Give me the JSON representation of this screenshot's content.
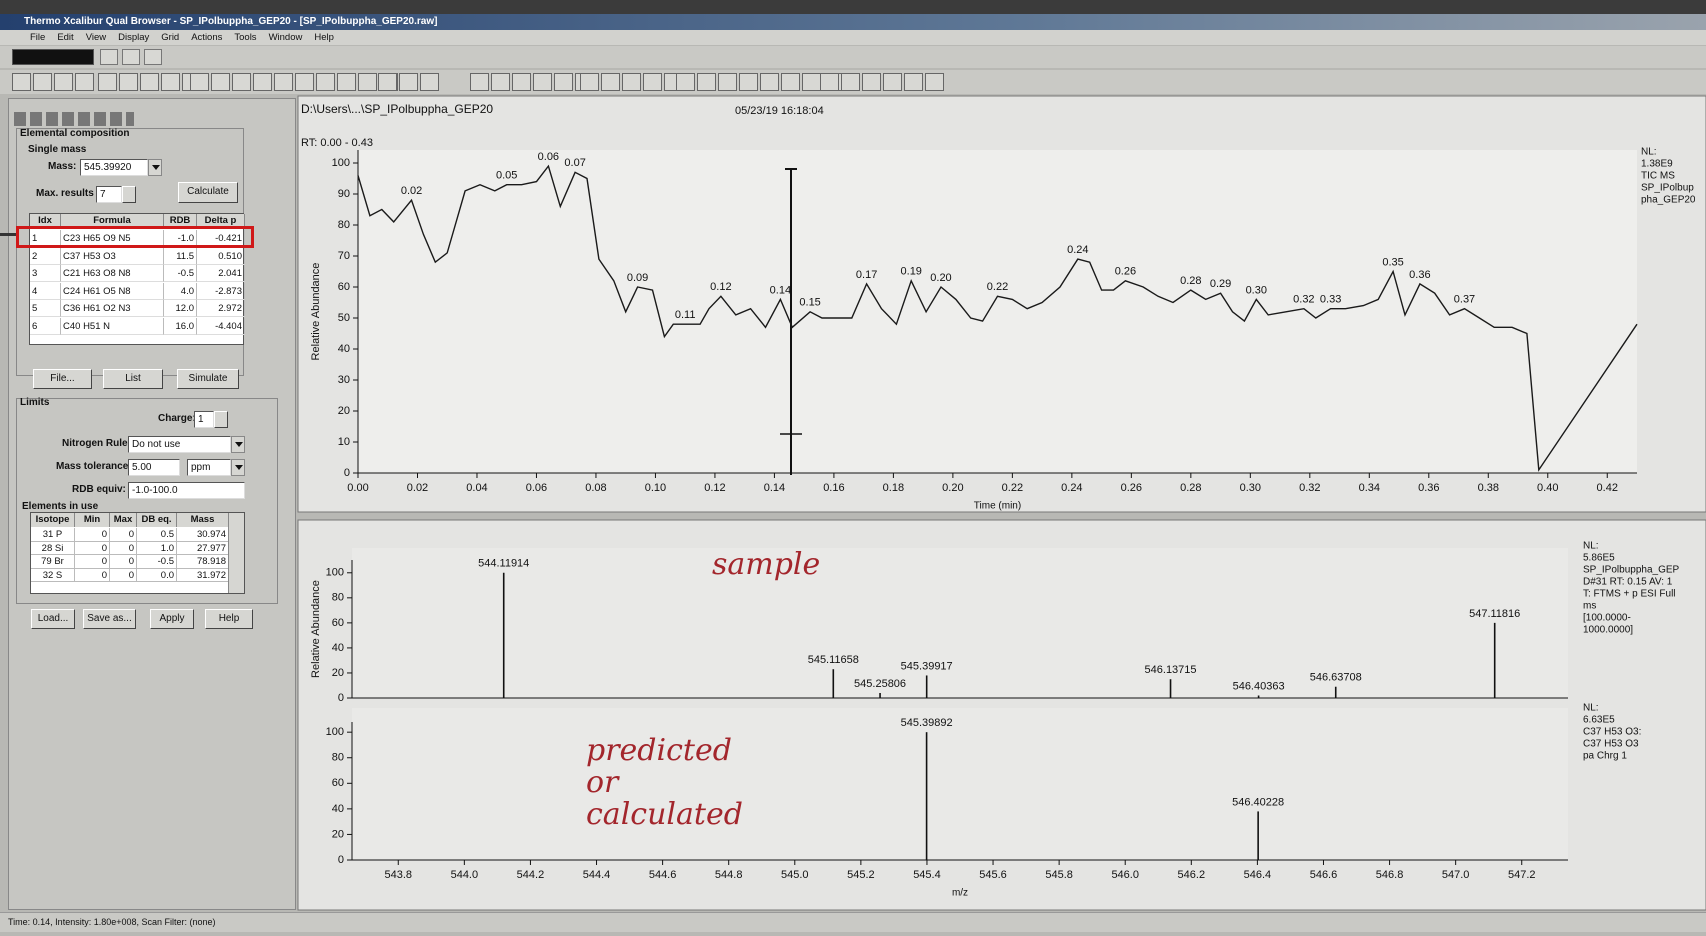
{
  "window": {
    "title": "Thermo Xcalibur Qual Browser - SP_IPolbuppha_GEP20 - [SP_IPolbuppha_GEP20.raw]",
    "menu": [
      "File",
      "Edit",
      "View",
      "Display",
      "Grid",
      "Actions",
      "Tools",
      "Window",
      "Help"
    ]
  },
  "composition": {
    "panel_title": "Elemental composition",
    "section": "Single mass",
    "mass_label": "Mass:",
    "mass": "545.39920",
    "max_results_label": "Max. results",
    "max_results": "7",
    "calculate": "Calculate",
    "columns": [
      "Idx",
      "Formula",
      "RDB",
      "Delta p"
    ],
    "rows": [
      [
        "1",
        "C23 H65 O9 N5",
        "-1.0",
        "-0.421"
      ],
      [
        "2",
        "C37 H53 O3",
        "11.5",
        "0.510"
      ],
      [
        "3",
        "C21 H63 O8 N8",
        "-0.5",
        "2.041"
      ],
      [
        "4",
        "C24 H61 O5 N8",
        "4.0",
        "-2.873"
      ],
      [
        "5",
        "C36 H61 O2 N3",
        "12.0",
        "2.972"
      ],
      [
        "6",
        "C40 H51 N",
        "16.0",
        "-4.404"
      ]
    ],
    "buttons": [
      "File...",
      "List",
      "Simulate"
    ],
    "limits": {
      "title": "Limits",
      "charge_label": "Charge:",
      "charge": "1",
      "nitrogen_label": "Nitrogen Rule:",
      "nitrogen": "Do not use",
      "tolerance_label": "Mass tolerance",
      "tolerance": "5.00",
      "tolerance_unit": "ppm",
      "rdb_label": "RDB equiv:",
      "rdb": "-1.0-100.0"
    },
    "elements": {
      "title": "Elements in use",
      "columns": [
        "Isotope",
        "Min",
        "Max",
        "DB eq.",
        "Mass"
      ],
      "rows": [
        [
          "31 P",
          "0",
          "0",
          "0.5",
          "30.974"
        ],
        [
          "28 Si",
          "0",
          "0",
          "1.0",
          "27.977"
        ],
        [
          "79 Br",
          "0",
          "0",
          "-0.5",
          "78.918"
        ],
        [
          "32 S",
          "0",
          "0",
          "0.0",
          "31.972"
        ]
      ]
    },
    "bottom_buttons": [
      "Load...",
      "Save as...",
      "Apply",
      "Help"
    ]
  },
  "chromatogram": {
    "type": "line",
    "path": "D:\\Users\\...\\SP_IPolbuppha_GEP20",
    "timestamp": "05/23/19 16:18:04",
    "range_label": "RT: 0.00 - 0.43",
    "xlabel": "Time (min)",
    "ylabel": "Relative Abundance",
    "color": "#1a1a1a",
    "x": [
      0.0,
      0.004,
      0.008,
      0.012,
      0.018,
      0.022,
      0.026,
      0.03,
      0.036,
      0.041,
      0.046,
      0.05,
      0.055,
      0.06,
      0.064,
      0.068,
      0.073,
      0.077,
      0.081,
      0.086,
      0.09,
      0.094,
      0.099,
      0.103,
      0.106,
      0.11,
      0.115,
      0.118,
      0.122,
      0.127,
      0.132,
      0.137,
      0.142,
      0.146,
      0.152,
      0.156,
      0.162,
      0.166,
      0.171,
      0.176,
      0.181,
      0.186,
      0.191,
      0.196,
      0.201,
      0.206,
      0.21,
      0.215,
      0.22,
      0.225,
      0.23,
      0.236,
      0.242,
      0.246,
      0.25,
      0.254,
      0.258,
      0.264,
      0.269,
      0.274,
      0.28,
      0.285,
      0.29,
      0.294,
      0.298,
      0.302,
      0.306,
      0.312,
      0.318,
      0.322,
      0.327,
      0.332,
      0.338,
      0.343,
      0.348,
      0.352,
      0.357,
      0.362,
      0.367,
      0.372,
      0.377,
      0.382,
      0.388,
      0.393,
      0.397,
      0.43
    ],
    "values": [
      96,
      83,
      85,
      81,
      88,
      77,
      68,
      71,
      91,
      93,
      91,
      93,
      93,
      94,
      99,
      86,
      97,
      95,
      69,
      62,
      52,
      60,
      59,
      44,
      48,
      48,
      48,
      53,
      57,
      51,
      53,
      47,
      56,
      47,
      52,
      50,
      50,
      50,
      61,
      53,
      48,
      62,
      52,
      60,
      56,
      50,
      49,
      57,
      56,
      53,
      55,
      60,
      69,
      68,
      59,
      59,
      62,
      60,
      57,
      55,
      59,
      56,
      58,
      52,
      49,
      56,
      51,
      52,
      53,
      50,
      53,
      53,
      54,
      56,
      65,
      51,
      61,
      58,
      51,
      53,
      50,
      47,
      47,
      45,
      1,
      48
    ],
    "peak_labels": [
      null,
      null,
      null,
      null,
      "0.02",
      null,
      null,
      null,
      null,
      null,
      null,
      "0.05",
      null,
      null,
      "0.06",
      null,
      "0.07",
      null,
      null,
      null,
      null,
      "0.09",
      null,
      null,
      null,
      "0.11",
      null,
      null,
      "0.12",
      null,
      null,
      null,
      "0.14",
      null,
      "0.15",
      null,
      null,
      null,
      "0.17",
      null,
      null,
      "0.19",
      null,
      "0.20",
      null,
      null,
      null,
      "0.22",
      null,
      null,
      null,
      null,
      "0.24",
      null,
      null,
      null,
      "0.26",
      null,
      null,
      null,
      "0.28",
      null,
      "0.29",
      null,
      null,
      "0.30",
      null,
      null,
      "0.32",
      null,
      "0.33",
      null,
      null,
      null,
      "0.35",
      null,
      "0.36",
      null,
      null,
      "0.37",
      null,
      null,
      null,
      null,
      null,
      null
    ],
    "xlim": [
      0,
      0.43
    ],
    "ylim": [
      0,
      100
    ],
    "xticks": [
      {
        "value": 0,
        "label": "0.00"
      },
      0.02,
      0.04,
      0.06,
      0.08,
      {
        "value": 0.1,
        "label": "0.10"
      },
      0.12,
      0.14,
      0.16,
      0.18,
      {
        "value": 0.2,
        "label": "0.20"
      },
      0.22,
      0.24,
      0.26,
      0.28,
      {
        "value": 0.3,
        "label": "0.30"
      },
      0.32,
      0.34,
      0.36,
      0.38,
      {
        "value": 0.4,
        "label": "0.40"
      },
      0.42
    ],
    "yticks": [
      0,
      10,
      20,
      30,
      40,
      50,
      60,
      70,
      80,
      90,
      100
    ],
    "info": [
      "NL:",
      "1.38E9",
      "TIC MS",
      "SP_IPolbup",
      "pha_GEP20"
    ]
  },
  "spectra": [
    {
      "type": "stem",
      "note": [
        "sample"
      ],
      "ylabel": "Relative Abundance",
      "color": "#111111",
      "x": [
        544.11914,
        545.11658,
        545.25806,
        545.39917,
        546.13715,
        546.40363,
        546.63708,
        547.11816
      ],
      "values": [
        100,
        23,
        4,
        18,
        15,
        2,
        9,
        60
      ],
      "xlim": [
        543.66,
        547.34
      ],
      "ylim": [
        0,
        115
      ],
      "yticks": [
        0,
        20,
        40,
        60,
        80,
        100
      ],
      "info": [
        "NL:",
        "5.86E5",
        "SP_IPolbuppha_GEP",
        "D#31 RT: 0.15 AV: 1",
        "T: FTMS + p ESI Full",
        "ms",
        "[100.0000-",
        "1000.0000]"
      ]
    },
    {
      "type": "stem",
      "note": [
        "predicted",
        "or",
        "calculated"
      ],
      "xlabel": "m/z",
      "color": "#111111",
      "x": [
        545.39892,
        546.40228
      ],
      "values": [
        100,
        38
      ],
      "xlim": [
        543.66,
        547.34
      ],
      "ylim": [
        0,
        115
      ],
      "xticks": [
        543.8,
        {
          "value": 544,
          "label": "544.0"
        },
        544.2,
        544.4,
        544.6,
        544.8,
        {
          "value": 545,
          "label": "545.0"
        },
        545.2,
        545.4,
        545.6,
        545.8,
        {
          "value": 546,
          "label": "546.0"
        },
        546.2,
        546.4,
        546.6,
        546.8,
        {
          "value": 547,
          "label": "547.0"
        },
        547.2
      ],
      "yticks": [
        0,
        20,
        40,
        60,
        80,
        100
      ],
      "info": [
        "NL:",
        "6.63E5",
        "C37 H53 O3:",
        "C37 H53 O3",
        "pa Chrg 1"
      ]
    }
  ],
  "status": "Time: 0.14, Intensity: 1.80e+008, Scan Filter: (none)"
}
